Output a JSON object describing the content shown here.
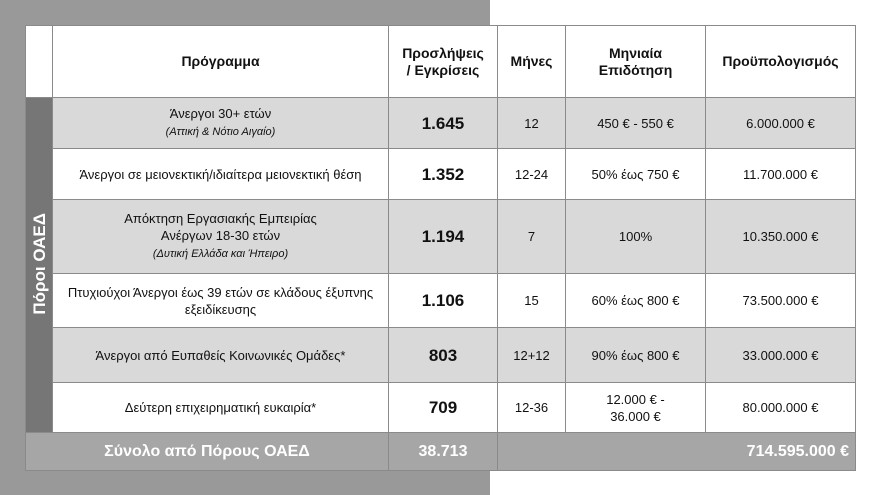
{
  "header": {
    "program": "Πρόγραμμα",
    "hires_line1": "Προσλήψεις",
    "hires_line2": "/ Εγκρίσεις",
    "months": "Μήνες",
    "subsidy_line1": "Μηνιαία",
    "subsidy_line2": "Επιδότηση",
    "budget": "Προϋπολογισμός"
  },
  "side_label": "Πόροι ΟΑΕΔ",
  "rows": [
    {
      "program": "Άνεργοι 30+ ετών",
      "program_note": "(Αττική & Νότιο Αιγαίο)",
      "hires": "1.645",
      "months": "12",
      "subsidy": "450 € - 550 €",
      "budget": "6.000.000 €"
    },
    {
      "program": "Άνεργοι σε μειονεκτική/ιδιαίτερα μειονεκτική θέση",
      "program_note": "",
      "hires": "1.352",
      "months": "12-24",
      "subsidy": "50% έως 750 €",
      "budget": "11.700.000 €"
    },
    {
      "program": "Απόκτηση Εργασιακής Εμπειρίας Ανέργων 18-30 ετών",
      "program_note": "(Δυτική Ελλάδα και Ήπειρο)",
      "hires": "1.194",
      "months": "7",
      "subsidy": "100%",
      "budget": "10.350.000 €"
    },
    {
      "program": "Πτυχιούχοι Άνεργοι έως 39 ετών σε κλάδους έξυπνης εξειδίκευσης",
      "program_note": "",
      "hires": "1.106",
      "months": "15",
      "subsidy": "60% έως 800 €",
      "budget": "73.500.000 €"
    },
    {
      "program": "Άνεργοι από Ευπαθείς Κοινωνικές Ομάδες*",
      "program_note": "",
      "hires": "803",
      "months": "12+12",
      "subsidy": "90% έως 800 €",
      "budget": "33.000.000 €"
    },
    {
      "program": "Δεύτερη επιχειρηματική ευκαιρία*",
      "program_note": "",
      "hires": "709",
      "months": "12-36",
      "subsidy": "12.000 € - 36.000 €",
      "budget": "80.000.000 €"
    }
  ],
  "total": {
    "label": "Σύνολο από Πόρους ΟΑΕΔ",
    "hires": "38.713",
    "budget": "714.595.000 €"
  },
  "colors": {
    "side_band": "#767676",
    "total_row": "#a6a6a6",
    "shaded_row": "#d9d9d9",
    "background_panel": "#999999"
  }
}
